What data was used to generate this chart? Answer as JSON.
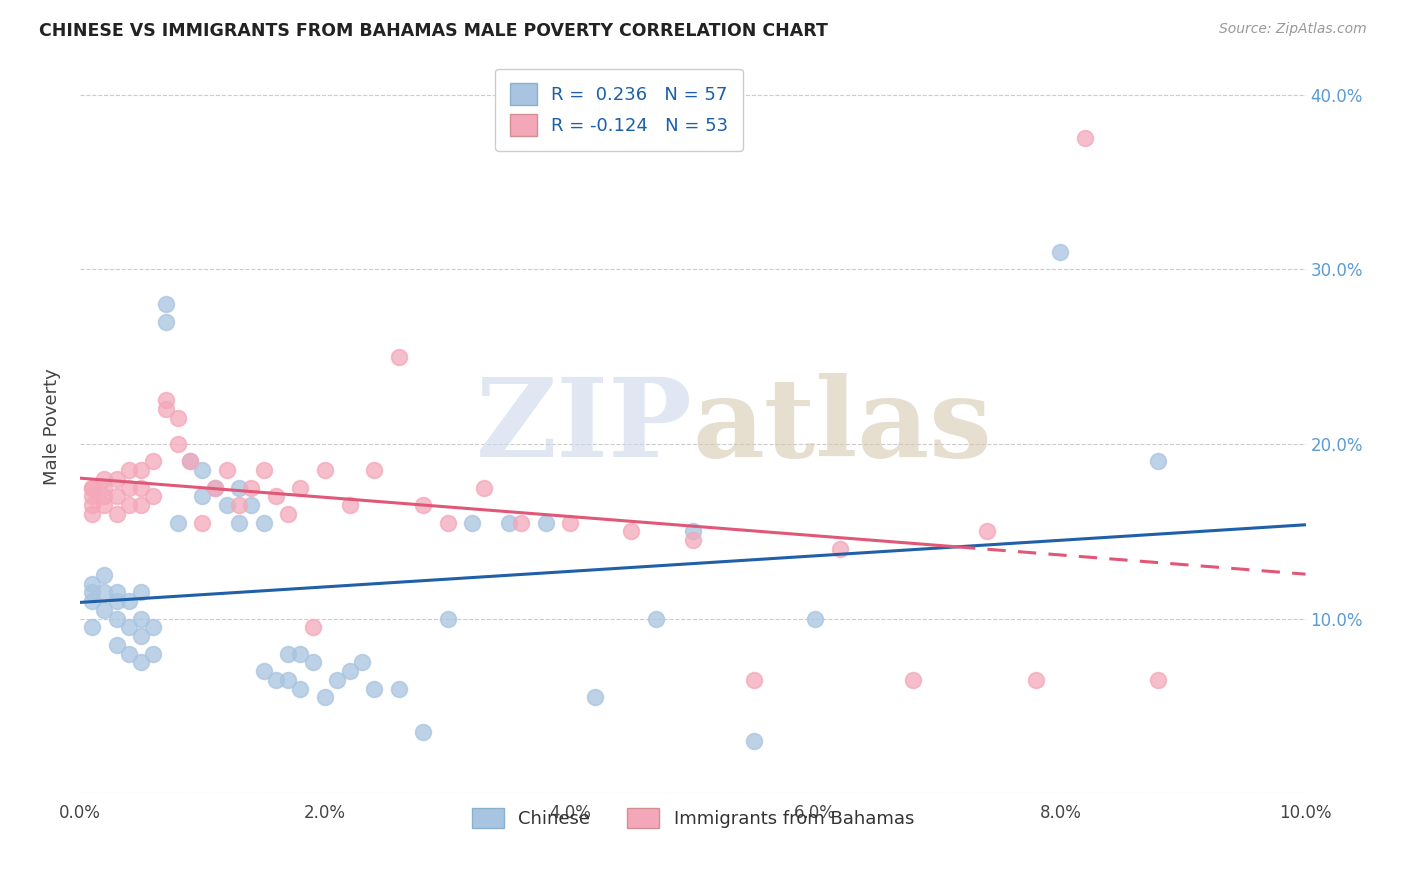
{
  "title": "CHINESE VS IMMIGRANTS FROM BAHAMAS MALE POVERTY CORRELATION CHART",
  "source": "Source: ZipAtlas.com",
  "ylabel_label": "Male Poverty",
  "xlim": [
    0.0,
    0.1
  ],
  "ylim": [
    0.0,
    0.42
  ],
  "xticks": [
    0.0,
    0.02,
    0.04,
    0.06,
    0.08,
    0.1
  ],
  "yticks": [
    0.1,
    0.2,
    0.3,
    0.4
  ],
  "chinese_color": "#a8c4e0",
  "bahamas_color": "#f4a7b9",
  "chinese_line_color": "#2060a8",
  "bahamas_line_color": "#e05878",
  "chinese_R": 0.236,
  "chinese_N": 57,
  "bahamas_R": -0.124,
  "bahamas_N": 53,
  "chinese_x": [
    0.001,
    0.001,
    0.001,
    0.001,
    0.002,
    0.002,
    0.002,
    0.003,
    0.003,
    0.003,
    0.003,
    0.004,
    0.004,
    0.004,
    0.005,
    0.005,
    0.005,
    0.005,
    0.006,
    0.006,
    0.007,
    0.007,
    0.008,
    0.009,
    0.01,
    0.01,
    0.011,
    0.012,
    0.013,
    0.013,
    0.014,
    0.015,
    0.015,
    0.016,
    0.017,
    0.017,
    0.018,
    0.018,
    0.019,
    0.02,
    0.021,
    0.022,
    0.023,
    0.024,
    0.026,
    0.028,
    0.03,
    0.032,
    0.035,
    0.038,
    0.042,
    0.047,
    0.05,
    0.055,
    0.06,
    0.08,
    0.088
  ],
  "chinese_y": [
    0.095,
    0.11,
    0.115,
    0.12,
    0.105,
    0.115,
    0.125,
    0.085,
    0.1,
    0.11,
    0.115,
    0.08,
    0.095,
    0.11,
    0.075,
    0.09,
    0.1,
    0.115,
    0.08,
    0.095,
    0.28,
    0.27,
    0.155,
    0.19,
    0.17,
    0.185,
    0.175,
    0.165,
    0.175,
    0.155,
    0.165,
    0.155,
    0.07,
    0.065,
    0.08,
    0.065,
    0.08,
    0.06,
    0.075,
    0.055,
    0.065,
    0.07,
    0.075,
    0.06,
    0.06,
    0.035,
    0.1,
    0.155,
    0.155,
    0.155,
    0.055,
    0.1,
    0.15,
    0.03,
    0.1,
    0.31,
    0.19
  ],
  "bahamas_x": [
    0.001,
    0.001,
    0.001,
    0.001,
    0.001,
    0.002,
    0.002,
    0.002,
    0.002,
    0.003,
    0.003,
    0.003,
    0.004,
    0.004,
    0.004,
    0.005,
    0.005,
    0.005,
    0.006,
    0.006,
    0.007,
    0.007,
    0.008,
    0.008,
    0.009,
    0.01,
    0.011,
    0.012,
    0.013,
    0.014,
    0.015,
    0.016,
    0.017,
    0.018,
    0.019,
    0.02,
    0.022,
    0.024,
    0.026,
    0.028,
    0.03,
    0.033,
    0.036,
    0.04,
    0.045,
    0.05,
    0.055,
    0.062,
    0.068,
    0.074,
    0.078,
    0.082,
    0.088
  ],
  "bahamas_y": [
    0.16,
    0.165,
    0.17,
    0.175,
    0.175,
    0.165,
    0.17,
    0.175,
    0.18,
    0.16,
    0.17,
    0.18,
    0.165,
    0.175,
    0.185,
    0.165,
    0.175,
    0.185,
    0.17,
    0.19,
    0.22,
    0.225,
    0.2,
    0.215,
    0.19,
    0.155,
    0.175,
    0.185,
    0.165,
    0.175,
    0.185,
    0.17,
    0.16,
    0.175,
    0.095,
    0.185,
    0.165,
    0.185,
    0.25,
    0.165,
    0.155,
    0.175,
    0.155,
    0.155,
    0.15,
    0.145,
    0.065,
    0.14,
    0.065,
    0.15,
    0.065,
    0.375,
    0.065
  ]
}
